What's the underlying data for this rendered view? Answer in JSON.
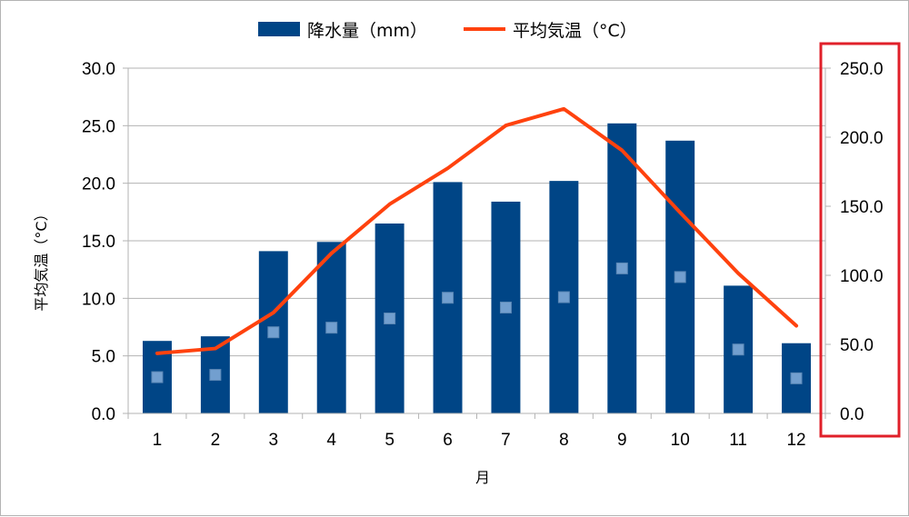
{
  "chart_data": {
    "type": "bar",
    "categories": [
      "1",
      "2",
      "3",
      "4",
      "5",
      "6",
      "7",
      "8",
      "9",
      "10",
      "11",
      "12"
    ],
    "series": [
      {
        "name": "降水量（mm）",
        "type": "bar",
        "axis": "left",
        "color": "#004586",
        "values": [
          6.3,
          6.7,
          14.1,
          14.9,
          16.5,
          20.1,
          18.4,
          20.2,
          25.2,
          23.7,
          11.1,
          6.1
        ]
      },
      {
        "name": "平均気温（°C）",
        "type": "line",
        "axis": "right",
        "color": "#ff420e",
        "values": [
          43.5,
          47.0,
          73.0,
          116.0,
          151.5,
          177.5,
          208.5,
          220.5,
          190.5,
          145.5,
          101.5,
          63.5
        ]
      }
    ],
    "marker_series": {
      "color": "#729fcf",
      "axis": "left",
      "values": [
        3.15,
        3.35,
        7.05,
        7.45,
        8.25,
        10.05,
        9.2,
        10.1,
        12.6,
        11.85,
        5.55,
        3.05
      ]
    },
    "xlabel": "月",
    "ylabel": "平均気温（°C）",
    "ylim_left": [
      0,
      30
    ],
    "ylim_right": [
      0,
      250
    ],
    "yticks_left": [
      "0.0",
      "5.0",
      "10.0",
      "15.0",
      "20.0",
      "25.0",
      "30.0"
    ],
    "yticks_right": [
      "0.0",
      "50.0",
      "100.0",
      "150.0",
      "200.0",
      "250.0"
    ],
    "grid": true,
    "legend_position": "top-center",
    "highlight": {
      "target": "right-axis",
      "color": "#e0202a"
    }
  }
}
